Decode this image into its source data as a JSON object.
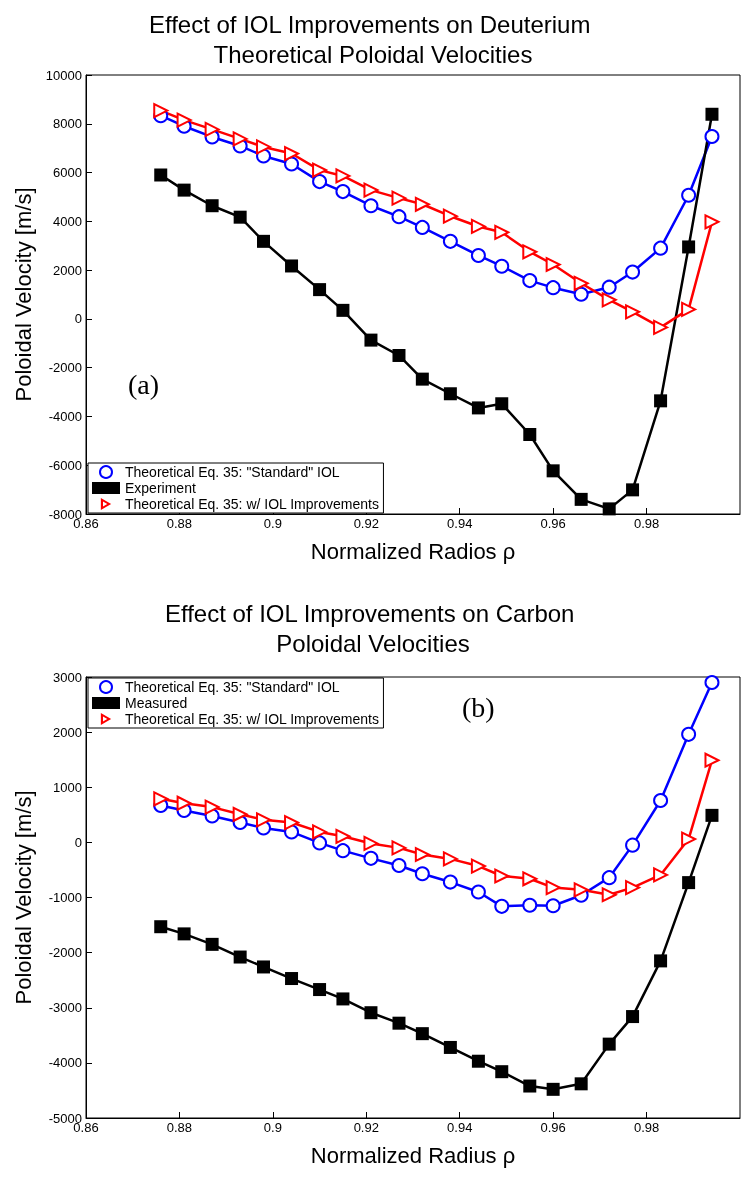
{
  "chart_data": [
    {
      "type": "line",
      "title": "Effect of IOL Improvements on Deuterium Theoretical Poloidal Velocities",
      "xlabel": "Normalized Radios ρ",
      "ylabel": "Poloidal Velocity [m/s]",
      "annotations": [
        "(a)"
      ],
      "x": [
        0.876,
        0.881,
        0.887,
        0.893,
        0.898,
        0.904,
        0.91,
        0.915,
        0.921,
        0.927,
        0.932,
        0.938,
        0.944,
        0.949,
        0.955,
        0.96,
        0.966,
        0.972,
        0.977,
        0.983,
        0.989,
        0.994
      ],
      "xlim": [
        0.86,
        1.0
      ],
      "xticks": [
        0.86,
        0.88,
        0.9,
        0.92,
        0.94,
        0.96,
        0.98
      ],
      "ylim": [
        -8000,
        10000
      ],
      "yticks": [
        -8000,
        -6000,
        -4000,
        -2000,
        0,
        2000,
        4000,
        6000,
        8000,
        10000
      ],
      "grid": false,
      "legend": "bottom left",
      "series": [
        {
          "name": "Theoretical Eq. 35: \"Standard\" IOL",
          "color": "#0000ff",
          "marker": "circle",
          "values": [
            8330,
            7900,
            7460,
            7090,
            6680,
            6350,
            5630,
            5220,
            4640,
            4190,
            3750,
            3180,
            2600,
            2160,
            1570,
            1280,
            1010,
            1300,
            1920,
            2900,
            5070,
            7480
          ]
        },
        {
          "name": "Experiment",
          "color": "#000000",
          "marker": "square",
          "values": [
            5900,
            5280,
            4640,
            4170,
            3180,
            2170,
            1200,
            350,
            -870,
            -1500,
            -2470,
            -3070,
            -3650,
            -3480,
            -4740,
            -6230,
            -7400,
            -7790,
            -7010,
            -3360,
            2950,
            8390
          ]
        },
        {
          "name": "Theoretical Eq. 35: w/ IOL Improvements",
          "color": "#ff0000",
          "marker": "triangle",
          "values": [
            8540,
            8150,
            7770,
            7380,
            7050,
            6780,
            6100,
            5860,
            5280,
            4950,
            4700,
            4210,
            3790,
            3550,
            2750,
            2230,
            1460,
            780,
            290,
            -350,
            390,
            3980
          ]
        }
      ]
    },
    {
      "type": "line",
      "title": "Effect of IOL Improvements on Carbon Poloidal Velocities",
      "xlabel": "Normalized Radius ρ",
      "ylabel": "Poloidal Velocity [m/s]",
      "annotations": [
        "(b)"
      ],
      "x": [
        0.876,
        0.881,
        0.887,
        0.893,
        0.898,
        0.904,
        0.91,
        0.915,
        0.921,
        0.927,
        0.932,
        0.938,
        0.944,
        0.949,
        0.955,
        0.96,
        0.966,
        0.972,
        0.977,
        0.983,
        0.989,
        0.994
      ],
      "xlim": [
        0.86,
        1.0
      ],
      "xticks": [
        0.86,
        0.88,
        0.9,
        0.92,
        0.94,
        0.96,
        0.98
      ],
      "ylim": [
        -5000,
        3000
      ],
      "yticks": [
        -5000,
        -4000,
        -3000,
        -2000,
        -1000,
        0,
        1000,
        2000,
        3000
      ],
      "grid": false,
      "legend": "top left",
      "series": [
        {
          "name": "Theoretical Eq. 35: \"Standard\" IOL",
          "color": "#0000ff",
          "marker": "circle",
          "values": [
            670,
            580,
            480,
            360,
            260,
            190,
            -10,
            -150,
            -290,
            -420,
            -570,
            -720,
            -900,
            -1160,
            -1140,
            -1150,
            -960,
            -640,
            -50,
            760,
            1960,
            2900
          ]
        },
        {
          "name": "Measured",
          "color": "#000000",
          "marker": "square",
          "values": [
            -1530,
            -1660,
            -1850,
            -2080,
            -2260,
            -2470,
            -2670,
            -2840,
            -3090,
            -3280,
            -3470,
            -3720,
            -3970,
            -4160,
            -4420,
            -4480,
            -4380,
            -3660,
            -3160,
            -2150,
            -730,
            490
          ]
        },
        {
          "name": "Theoretical Eq. 35: w/ IOL Improvements",
          "color": "#ff0000",
          "marker": "triangle",
          "values": [
            790,
            710,
            640,
            510,
            410,
            360,
            190,
            110,
            -20,
            -100,
            -220,
            -300,
            -430,
            -610,
            -660,
            -820,
            -860,
            -950,
            -820,
            -590,
            60,
            1490
          ]
        }
      ]
    }
  ]
}
